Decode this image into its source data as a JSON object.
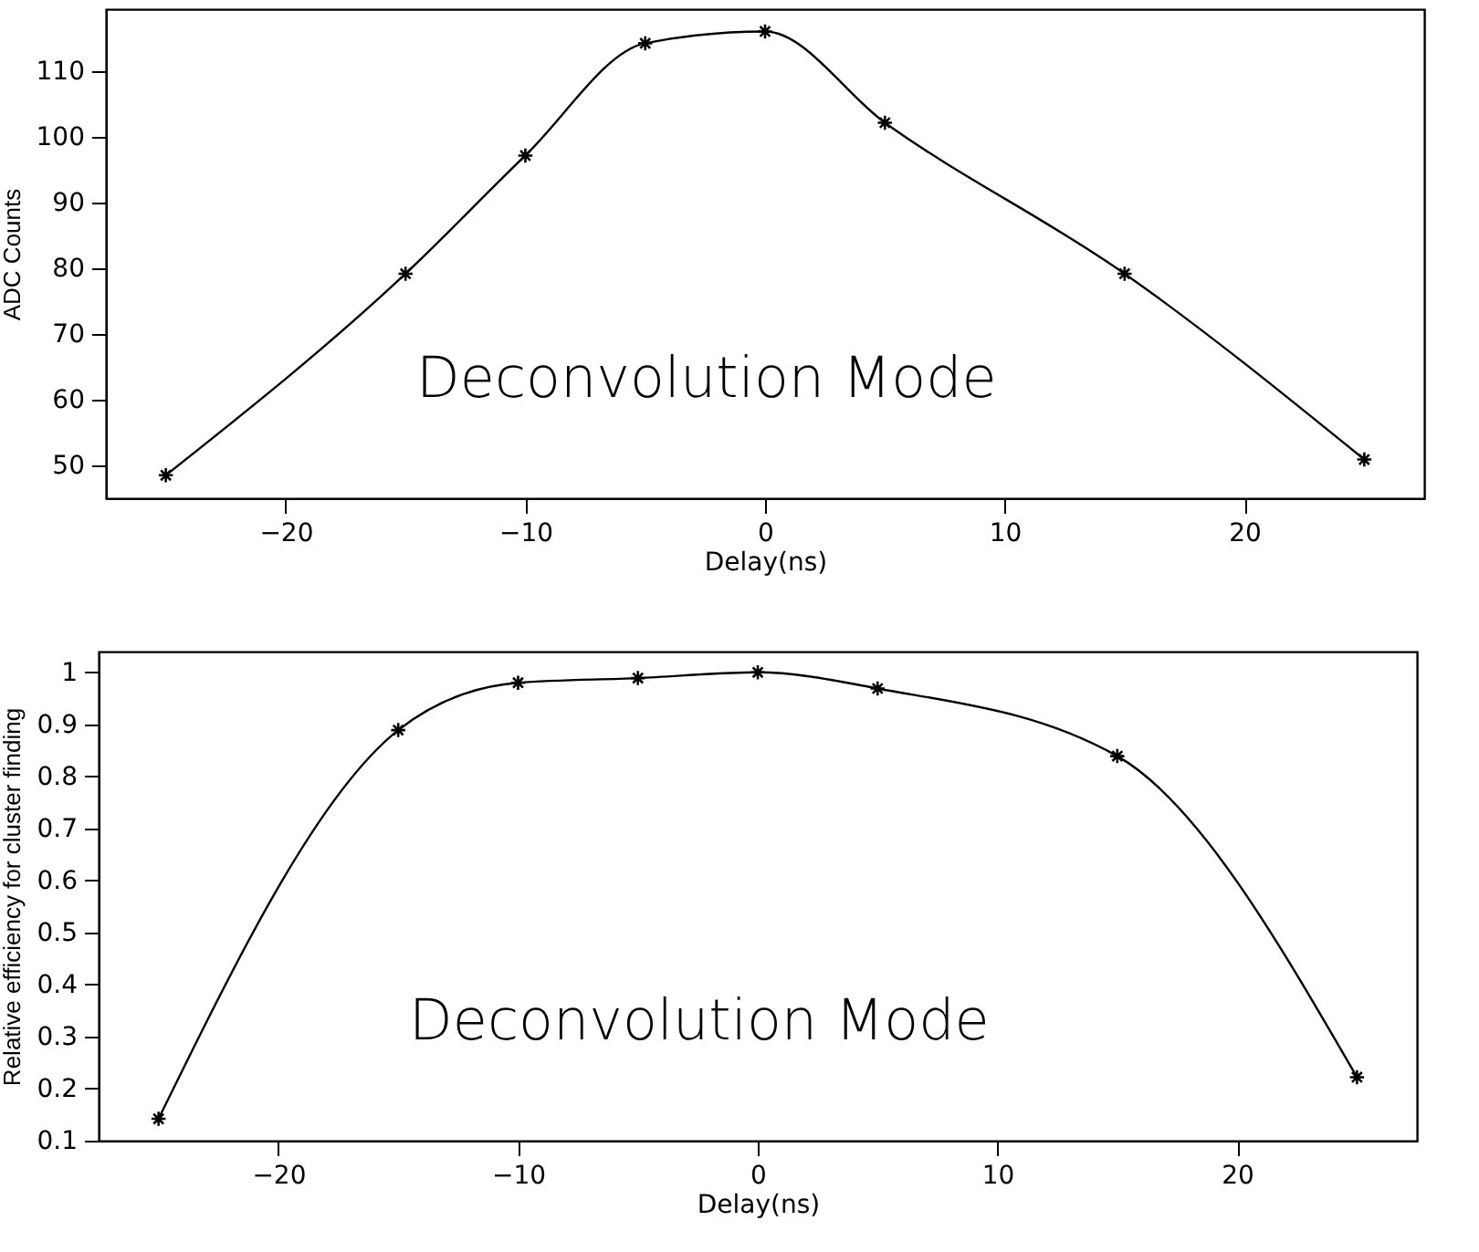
{
  "chart_data": [
    {
      "type": "line",
      "xlabel": "Delay(ns)",
      "ylabel": "ADC Counts",
      "annotations": [
        "Deconvolution Mode"
      ],
      "x": [
        -25,
        -15,
        -10,
        -5,
        0,
        5,
        15,
        25
      ],
      "series": [
        {
          "color": "#000000",
          "values": [
            48.5,
            79.2,
            97.2,
            114.3,
            116.1,
            102.2,
            79.2,
            50.9
          ]
        }
      ],
      "xlim": [
        -27.5,
        27.5
      ],
      "xticks": [
        -20,
        -10,
        0,
        10,
        20
      ],
      "ylim": [
        45,
        119.5
      ],
      "yticks": [
        50,
        60,
        70,
        80,
        90,
        100,
        110
      ],
      "grid": false,
      "legend": false,
      "marker": "cross",
      "line_style": "solid"
    },
    {
      "type": "line",
      "xlabel": "Delay(ns)",
      "ylabel": "Relative efficiency for cluster finding",
      "annotations": [
        "Deconvolution Mode"
      ],
      "x": [
        -25,
        -15,
        -10,
        -5,
        0,
        5,
        15,
        25
      ],
      "series": [
        {
          "color": "#000000",
          "values": [
            0.142,
            0.889,
            0.98,
            0.989,
            1.0,
            0.969,
            0.839,
            0.222
          ]
        }
      ],
      "xlim": [
        -27.5,
        27.5
      ],
      "xticks": [
        -20,
        -10,
        0,
        10,
        20
      ],
      "ylim": [
        0.1,
        1.04
      ],
      "yticks": [
        0.1,
        0.2,
        0.3,
        0.4,
        0.5,
        0.6,
        0.7,
        0.8,
        0.9,
        1
      ],
      "grid": false,
      "legend": false,
      "marker": "cross",
      "line_style": "solid"
    }
  ]
}
